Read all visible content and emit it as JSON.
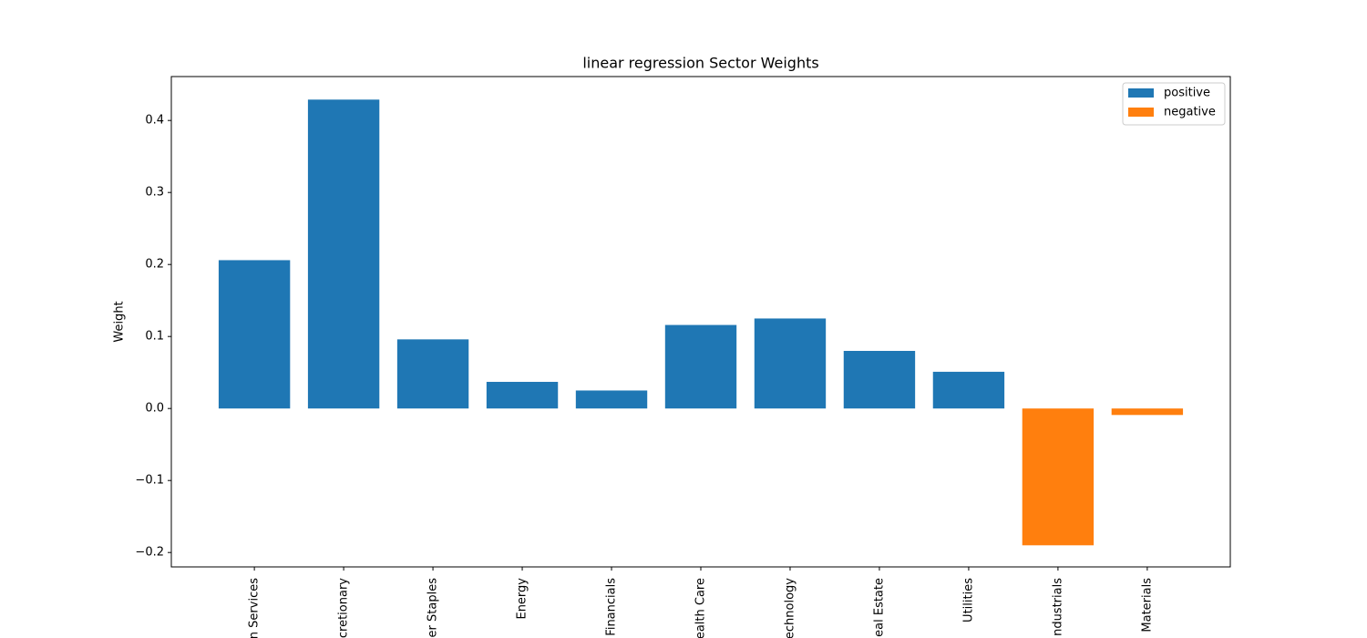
{
  "chart_data": {
    "type": "bar",
    "title": "linear regression Sector Weights",
    "y_label": "Weight",
    "categories": [
      "n Services",
      "cretionary",
      "er Staples",
      "Energy",
      "Financials",
      "ealth Care",
      "echnology",
      "eal Estate",
      "Utilities",
      "ndustrials",
      "Materials"
    ],
    "series": [
      {
        "name": "positive",
        "color": "#1f77b4",
        "values": [
          0.206,
          0.429,
          0.096,
          0.037,
          0.025,
          0.116,
          0.125,
          0.08,
          0.051,
          null,
          null
        ]
      },
      {
        "name": "negative",
        "color": "#ff7f0e",
        "values": [
          null,
          null,
          null,
          null,
          null,
          null,
          null,
          null,
          null,
          -0.19,
          -0.009
        ]
      }
    ],
    "ylim": [
      -0.22,
      0.461
    ],
    "yticks": [
      {
        "value": -0.2,
        "label": "−0.2"
      },
      {
        "value": -0.1,
        "label": "−0.1"
      },
      {
        "value": 0,
        "label": "0.0"
      },
      0.1,
      0.2,
      0.3,
      0.4
    ],
    "grid": false,
    "legend": "upper right"
  }
}
